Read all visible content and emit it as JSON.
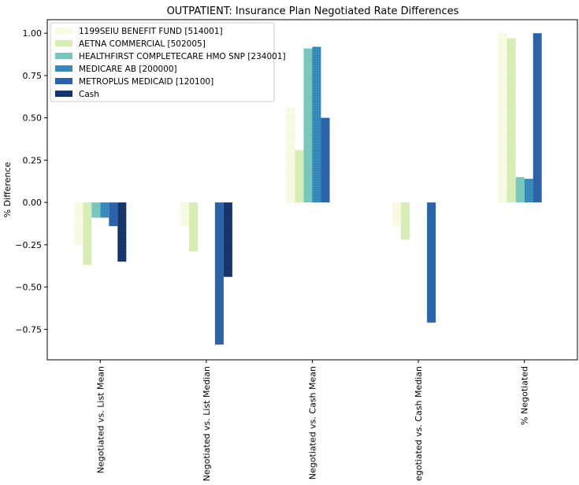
{
  "chart_data": {
    "type": "bar",
    "title": "OUTPATIENT: Insurance Plan Negotiated Rate Differences",
    "xlabel": "",
    "ylabel": "% Difference",
    "categories": [
      "Negotiated vs. List Mean",
      "Negotiated vs. List Median",
      "Negotiated vs. Cash Mean",
      "Negotiated vs. Cash Median",
      "% Negotiated"
    ],
    "ylim": [
      -0.93,
      1.08
    ],
    "yticks": [
      -0.75,
      -0.5,
      -0.25,
      0.0,
      0.25,
      0.5,
      0.75,
      1.0
    ],
    "ytick_labels": [
      "−0.75",
      "−0.50",
      "−0.25",
      "0.00",
      "0.25",
      "0.50",
      "0.75",
      "1.00"
    ],
    "grid": false,
    "legend_position": "upper left",
    "series": [
      {
        "name": "1199SEIU BENEFIT FUND [514001]",
        "color": "#f5fbd0",
        "pattern": "dots-light",
        "values": [
          -0.25,
          -0.14,
          0.56,
          -0.14,
          1.0
        ]
      },
      {
        "name": "AETNA COMMERCIAL [502005]",
        "color": "#d8edb5",
        "pattern": "none",
        "values": [
          -0.37,
          -0.29,
          0.31,
          -0.22,
          0.97
        ]
      },
      {
        "name": "HEALTHFIRST COMPLETECARE HMO SNP [234001]",
        "color": "#79c6bd",
        "pattern": "none",
        "values": [
          -0.09,
          0.0,
          0.91,
          0.0,
          0.15
        ]
      },
      {
        "name": "MEDICARE AB [200000]",
        "color": "#3c93c2",
        "pattern": "dots-dark",
        "values": [
          -0.09,
          0.0,
          0.92,
          0.0,
          0.14
        ]
      },
      {
        "name": "METROPLUS MEDICAID [120100]",
        "color": "#2c62a8",
        "pattern": "none",
        "values": [
          -0.14,
          -0.84,
          0.5,
          -0.71,
          1.0
        ]
      },
      {
        "name": "Cash",
        "color": "#173a72",
        "pattern": "dots-navy",
        "values": [
          -0.35,
          -0.44,
          0.0,
          0.0,
          0.0
        ]
      }
    ]
  }
}
